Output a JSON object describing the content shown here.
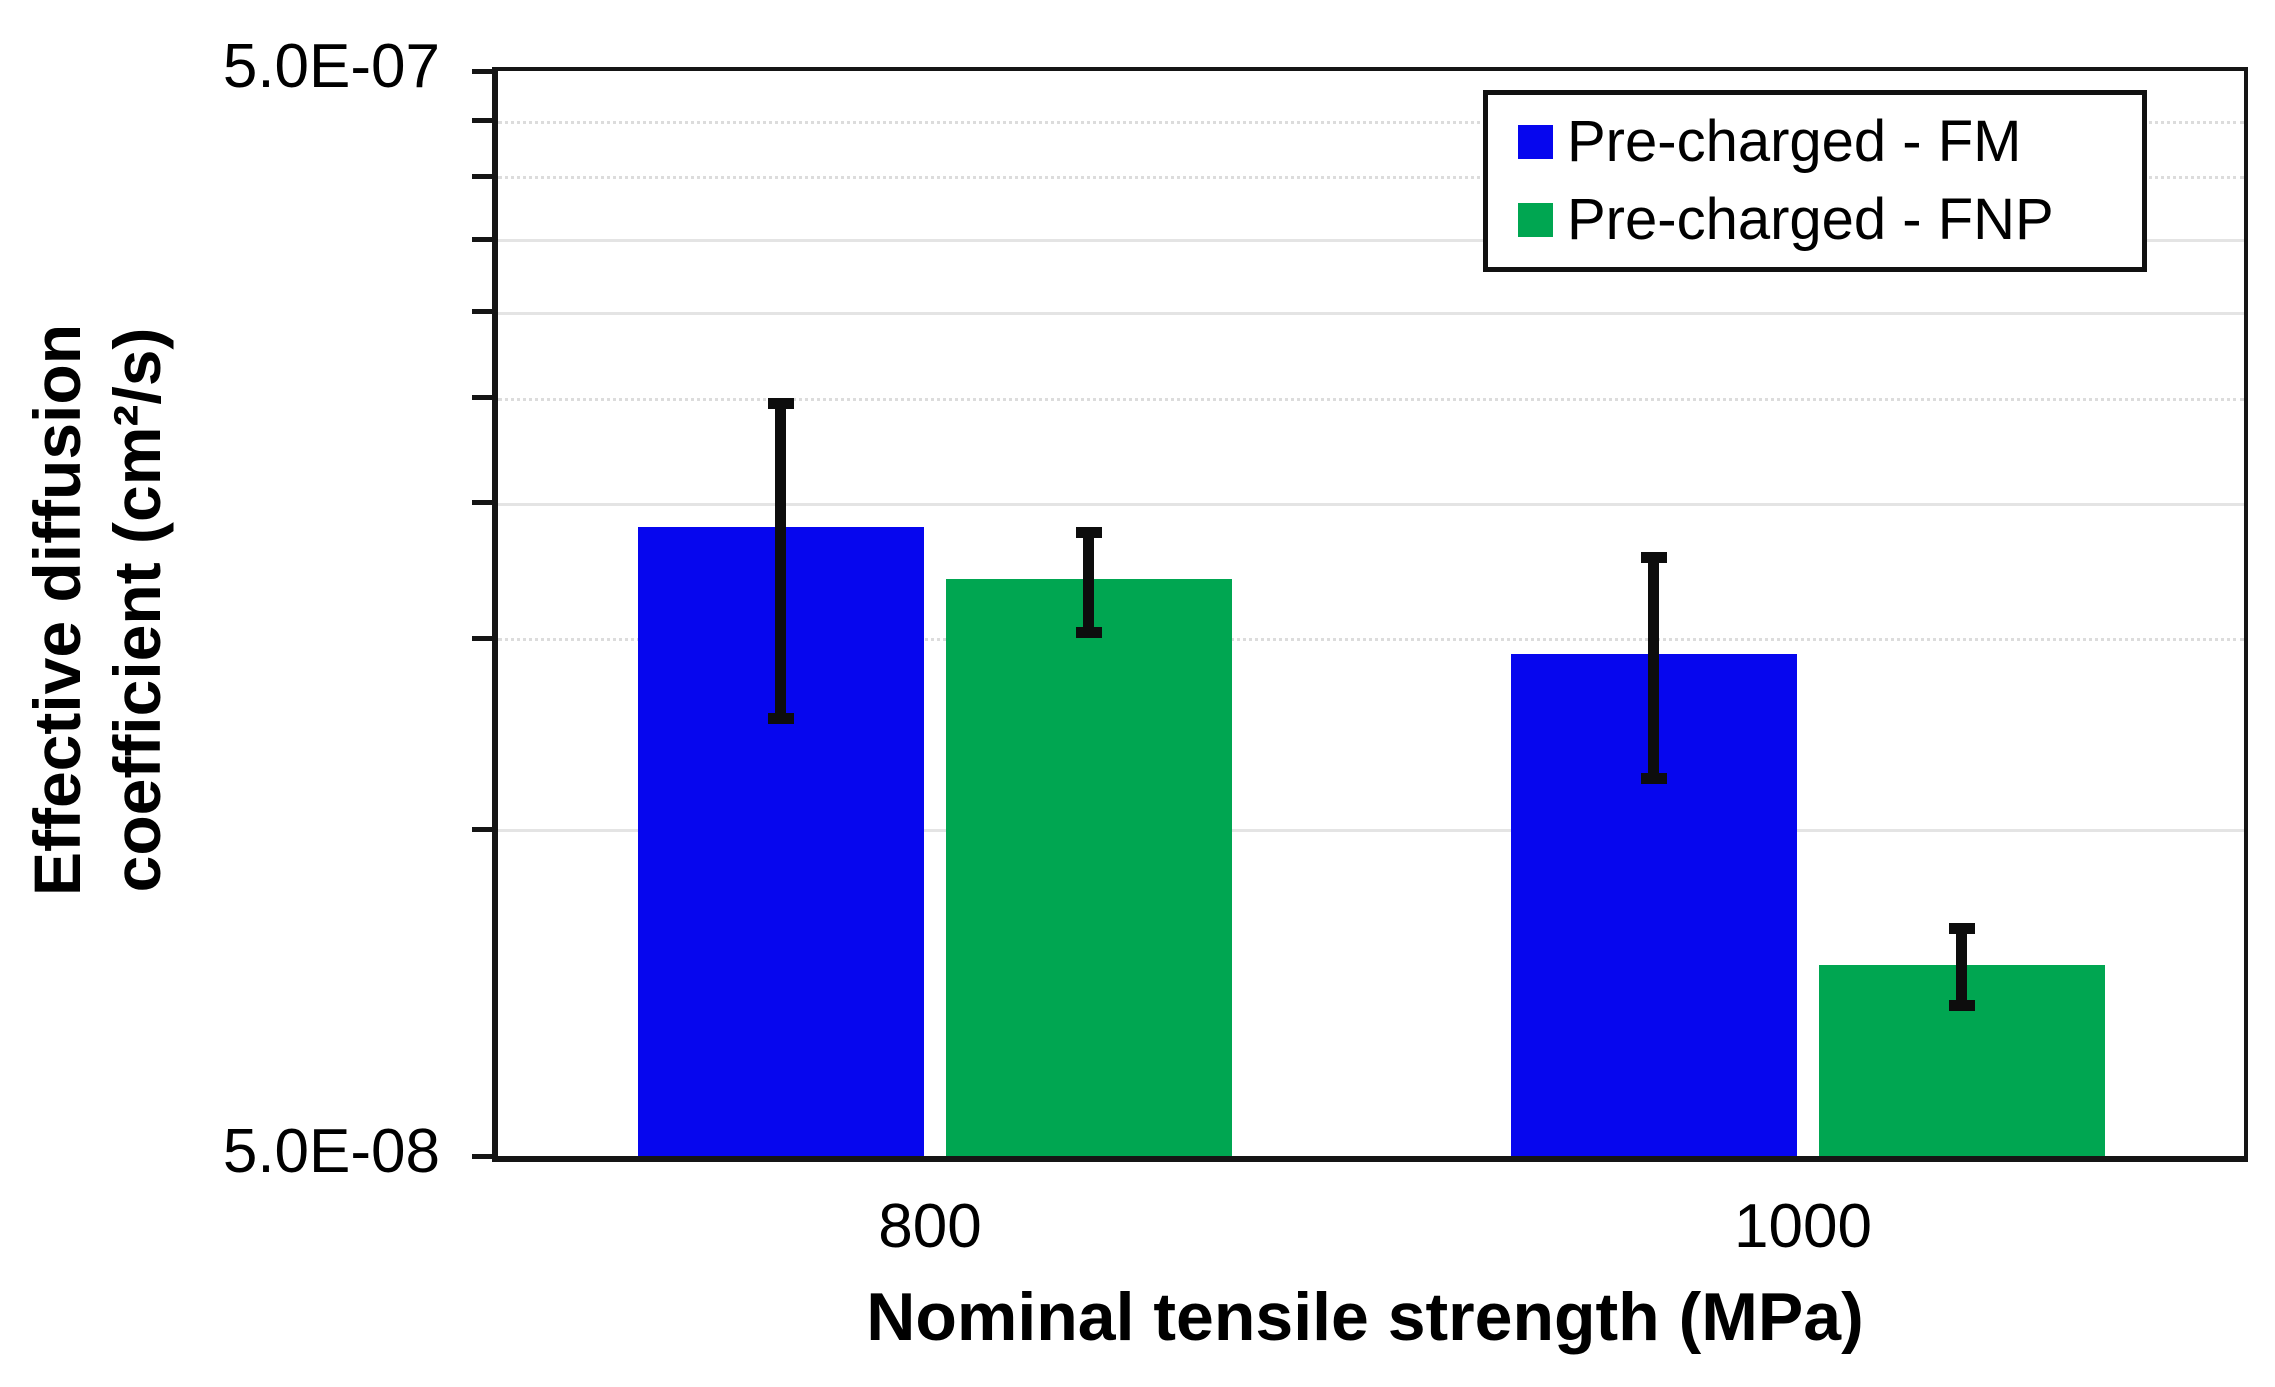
{
  "chart_data": {
    "type": "bar",
    "title": "",
    "x_axis": {
      "label": "Nominal tensile strength (MPa)",
      "categories": [
        "800",
        "1000"
      ]
    },
    "y_axis": {
      "label_line1": "Effective diffusion",
      "label_line2": "coefficient (cm²/s)",
      "scale": "log",
      "min": 5e-08,
      "max": 5e-07,
      "min_label": "5.0E-08",
      "max_label": "5.0E-07",
      "minor_ticks": [
        {
          "value": 4.5e-07,
          "style": "dotted"
        },
        {
          "value": 4e-07,
          "style": "dotted"
        },
        {
          "value": 3.5e-07,
          "style": "solid"
        },
        {
          "value": 3e-07,
          "style": "solid"
        },
        {
          "value": 2.5e-07,
          "style": "dotted"
        },
        {
          "value": 2e-07,
          "style": "solid"
        },
        {
          "value": 1.5e-07,
          "style": "dotted"
        },
        {
          "value": 1e-07,
          "style": "solid"
        }
      ]
    },
    "grid": true,
    "legend_position": "top-right",
    "series": [
      {
        "name": "Pre-charged - FM",
        "color": "#0606ee",
        "values": [
          1.9e-07,
          1.45e-07
        ],
        "error_high": [
          2.5e-07,
          1.8e-07
        ],
        "error_low": [
          1.25e-07,
          1.1e-07
        ]
      },
      {
        "name": "Pre-charged - FNP",
        "color": "#00a651",
        "values": [
          1.7e-07,
          7.5e-08
        ],
        "error_high": [
          1.9e-07,
          8.2e-08
        ],
        "error_low": [
          1.5e-07,
          6.8e-08
        ]
      }
    ]
  }
}
